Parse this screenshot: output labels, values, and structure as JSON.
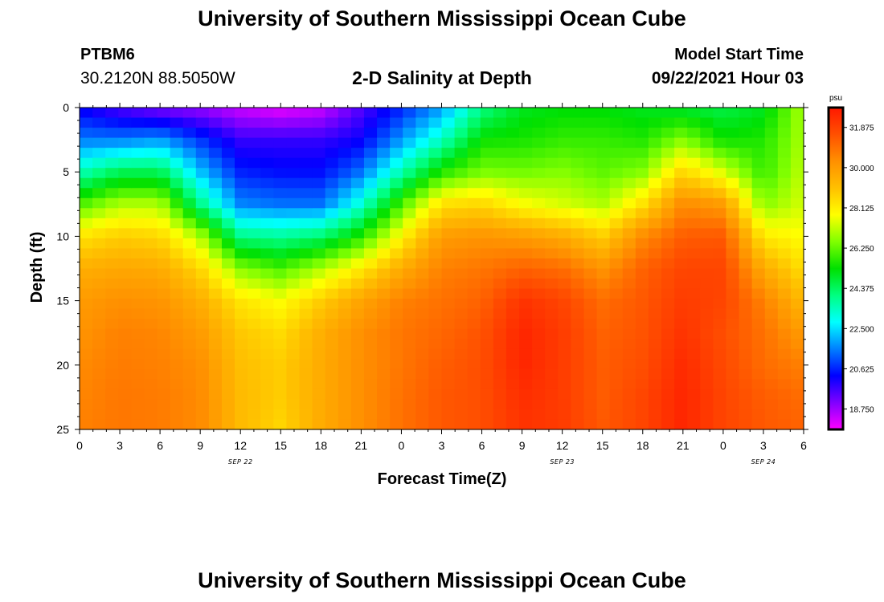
{
  "header": {
    "title": "University of Southern Mississippi Ocean Cube",
    "station_id": "PTBM6",
    "station_coords": "30.2120N  88.5050W",
    "chart_title": "2-D Salinity at Depth",
    "model_start_label": "Model Start Time",
    "model_start_value": "09/22/2021 Hour 03"
  },
  "footer": {
    "title": "University of Southern Mississippi Ocean Cube"
  },
  "chart_data": {
    "type": "heatmap",
    "title": "2-D Salinity at Depth",
    "xlabel": "Forecast Time(Z)",
    "ylabel": "Depth (ft)",
    "x_range_hours": [
      0,
      54
    ],
    "y_range_ft": [
      0,
      25
    ],
    "x_ticks": [
      "0",
      "3",
      "6",
      "9",
      "12",
      "15",
      "18",
      "21",
      "0",
      "3",
      "6",
      "9",
      "12",
      "15",
      "18",
      "21",
      "0",
      "3",
      "6"
    ],
    "y_ticks": [
      "0",
      "5",
      "10",
      "15",
      "20",
      "25"
    ],
    "date_labels": [
      {
        "label": "SEP 22",
        "hour": 12
      },
      {
        "label": "SEP 23",
        "hour": 36
      },
      {
        "label": "SEP 24",
        "hour": 51
      }
    ],
    "colorbar": {
      "unit": "psu",
      "min": 17.8,
      "max": 32.8,
      "tick_labels": [
        "31.875",
        "30.000",
        "28.125",
        "26.250",
        "24.375",
        "22.500",
        "20.625",
        "18.750"
      ],
      "colors": [
        "#ff00ff",
        "#8000ff",
        "#0000ff",
        "#0080ff",
        "#00ffff",
        "#00ff80",
        "#00e000",
        "#80ff00",
        "#ffff00",
        "#ffc000",
        "#ff9000",
        "#ff5000",
        "#ff1800"
      ]
    },
    "salinity_profile_grid": {
      "depths_ft": [
        0,
        2.5,
        5,
        7.5,
        10,
        12.5,
        15,
        17.5,
        20,
        22.5,
        25
      ],
      "hours": [
        0,
        3,
        6,
        9,
        12,
        15,
        18,
        21,
        24,
        27,
        30,
        33,
        36,
        39,
        42,
        45,
        48,
        51,
        54
      ],
      "values_psu": [
        [
          20.2,
          21.5,
          23.5,
          26.0,
          28.3,
          29.5,
          30.0,
          30.2,
          30.4,
          30.5,
          30.6
        ],
        [
          19.5,
          21.5,
          24.5,
          27.0,
          28.8,
          29.7,
          30.3,
          30.6,
          30.7,
          30.8,
          30.8
        ],
        [
          19.0,
          21.8,
          24.5,
          27.0,
          28.6,
          29.6,
          30.2,
          30.5,
          30.6,
          30.7,
          30.7
        ],
        [
          18.8,
          20.8,
          22.2,
          24.0,
          27.0,
          28.6,
          29.5,
          30.0,
          30.3,
          30.4,
          30.4
        ],
        [
          18.3,
          19.8,
          20.6,
          21.6,
          24.0,
          26.6,
          28.3,
          28.9,
          29.1,
          29.2,
          29.2
        ],
        [
          18.0,
          19.8,
          20.4,
          21.4,
          23.8,
          26.0,
          27.8,
          28.5,
          28.8,
          28.8,
          28.6
        ],
        [
          18.3,
          19.8,
          20.4,
          21.4,
          24.2,
          27.0,
          28.8,
          29.5,
          29.6,
          29.6,
          29.6
        ],
        [
          19.5,
          20.2,
          21.4,
          23.2,
          25.6,
          28.2,
          29.8,
          30.3,
          30.3,
          30.3,
          30.3
        ],
        [
          20.6,
          21.8,
          23.6,
          26.0,
          28.0,
          29.6,
          30.6,
          30.8,
          30.8,
          30.9,
          30.9
        ],
        [
          21.8,
          23.4,
          25.6,
          28.4,
          30.0,
          30.6,
          30.9,
          31.1,
          31.3,
          31.4,
          31.4
        ],
        [
          24.0,
          25.4,
          26.5,
          28.6,
          30.2,
          30.8,
          31.2,
          31.5,
          31.6,
          31.6,
          31.6
        ],
        [
          25.0,
          25.5,
          26.4,
          27.8,
          30.0,
          31.2,
          32.2,
          32.5,
          32.5,
          32.3,
          32.2
        ],
        [
          25.2,
          25.8,
          26.6,
          27.4,
          29.6,
          31.0,
          31.8,
          32.0,
          32.0,
          32.0,
          32.0
        ],
        [
          25.2,
          25.8,
          26.2,
          27.0,
          28.8,
          30.2,
          31.0,
          31.2,
          31.3,
          31.3,
          31.4
        ],
        [
          25.0,
          25.6,
          26.6,
          28.4,
          30.4,
          31.2,
          31.4,
          31.5,
          31.6,
          31.8,
          31.8
        ],
        [
          24.8,
          26.6,
          28.6,
          30.4,
          31.3,
          31.8,
          32.0,
          32.2,
          32.4,
          32.5,
          32.5
        ],
        [
          24.6,
          25.4,
          27.4,
          30.0,
          31.4,
          31.8,
          31.8,
          31.6,
          31.7,
          31.8,
          31.8
        ],
        [
          25.0,
          25.6,
          25.8,
          26.6,
          28.2,
          29.6,
          30.6,
          30.9,
          31.0,
          31.3,
          31.4
        ],
        [
          27.0,
          27.0,
          27.2,
          27.4,
          27.8,
          28.4,
          29.2,
          30.0,
          30.6,
          31.0,
          31.2
        ]
      ]
    }
  }
}
